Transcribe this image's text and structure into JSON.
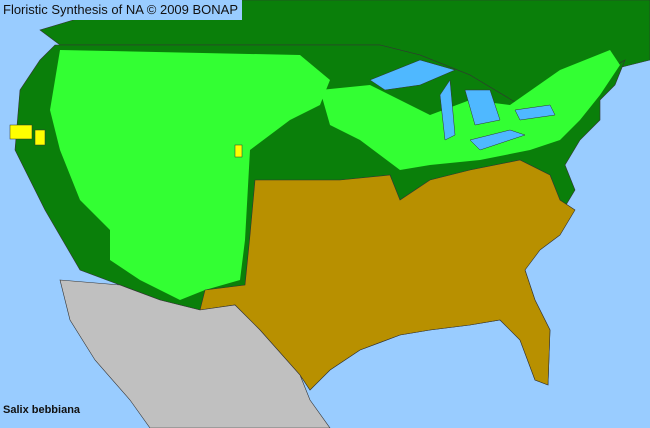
{
  "header": {
    "title": "Floristic Synthesis of NA © 2009 BONAP"
  },
  "map": {
    "species": "Salix bebbiana",
    "colors": {
      "water": "#99ccff",
      "present_native": "#33ff33",
      "species_absent_in_state": "#b89000",
      "state_present_county_absent": "#0a7f0a",
      "rare_or_noxious": "#ffff00",
      "non_us": "#c0c0c0",
      "borders": "#333333"
    }
  }
}
